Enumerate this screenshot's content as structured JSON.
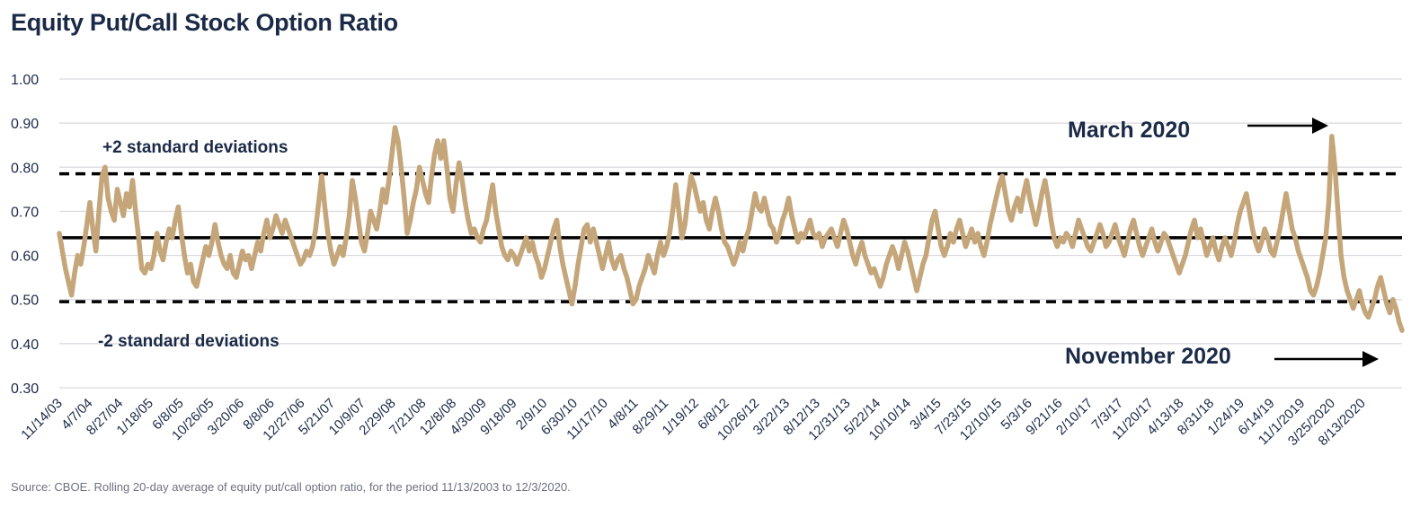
{
  "title": "Equity Put/Call Stock Option Ratio",
  "source": "Source: CBOE. Rolling 20-day average of equity put/call option ratio, for the period 11/13/2003 to 12/3/2020.",
  "colors": {
    "series": "#c4a67a",
    "text": "#1b2a47",
    "grid": "#d9d9de",
    "lines": "#000000"
  },
  "chart_data": {
    "type": "line",
    "title": "Equity Put/Call Stock Option Ratio",
    "ylim": [
      0.3,
      1.0
    ],
    "yticks": [
      "0.30",
      "0.40",
      "0.50",
      "0.60",
      "0.70",
      "0.80",
      "0.90",
      "1.00"
    ],
    "grid": true,
    "x_tick_labels": [
      "11/14/03",
      "4/7/04",
      "8/27/04",
      "1/18/05",
      "6/8/05",
      "10/26/05",
      "3/20/06",
      "8/8/06",
      "12/27/06",
      "5/21/07",
      "10/9/07",
      "2/29/08",
      "7/21/08",
      "12/8/08",
      "4/30/09",
      "9/18/09",
      "2/9/10",
      "6/30/10",
      "11/17/10",
      "4/8/11",
      "8/29/11",
      "1/19/12",
      "6/8/12",
      "10/26/12",
      "3/22/13",
      "8/12/13",
      "12/31/13",
      "5/22/14",
      "10/10/14",
      "3/4/15",
      "7/23/15",
      "12/10/15",
      "5/3/16",
      "9/21/16",
      "2/10/17",
      "7/3/17",
      "11/20/17",
      "4/13/18",
      "8/31/18",
      "1/24/19",
      "6/14/19",
      "11/1/2019",
      "3/25/2020",
      "8/13/2020"
    ],
    "reference_lines": [
      {
        "value": 0.64,
        "style": "solid"
      },
      {
        "value": 0.785,
        "style": "dashed"
      },
      {
        "value": 0.495,
        "style": "dashed"
      }
    ],
    "annotations": [
      {
        "text": "+2 standard deviations"
      },
      {
        "text": "-2 standard deviations"
      },
      {
        "text": "March 2020"
      },
      {
        "text": "November 2020"
      }
    ],
    "series": [
      {
        "values": [
          0.65,
          0.61,
          0.57,
          0.54,
          0.51,
          0.56,
          0.6,
          0.58,
          0.62,
          0.67,
          0.72,
          0.66,
          0.61,
          0.7,
          0.78,
          0.8,
          0.73,
          0.7,
          0.68,
          0.75,
          0.72,
          0.69,
          0.74,
          0.71,
          0.77,
          0.7,
          0.64,
          0.57,
          0.56,
          0.58,
          0.57,
          0.6,
          0.65,
          0.61,
          0.59,
          0.63,
          0.66,
          0.64,
          0.68,
          0.71,
          0.65,
          0.6,
          0.56,
          0.58,
          0.54,
          0.53,
          0.56,
          0.59,
          0.62,
          0.6,
          0.63,
          0.67,
          0.63,
          0.6,
          0.58,
          0.57,
          0.6,
          0.56,
          0.55,
          0.58,
          0.61,
          0.59,
          0.6,
          0.57,
          0.6,
          0.63,
          0.61,
          0.65,
          0.68,
          0.64,
          0.66,
          0.69,
          0.67,
          0.65,
          0.68,
          0.66,
          0.64,
          0.62,
          0.6,
          0.58,
          0.59,
          0.61,
          0.6,
          0.62,
          0.66,
          0.72,
          0.78,
          0.71,
          0.65,
          0.61,
          0.58,
          0.6,
          0.62,
          0.6,
          0.64,
          0.69,
          0.77,
          0.73,
          0.68,
          0.63,
          0.61,
          0.65,
          0.7,
          0.68,
          0.66,
          0.7,
          0.75,
          0.72,
          0.77,
          0.83,
          0.89,
          0.86,
          0.8,
          0.73,
          0.65,
          0.68,
          0.72,
          0.75,
          0.8,
          0.77,
          0.74,
          0.72,
          0.78,
          0.83,
          0.86,
          0.82,
          0.86,
          0.8,
          0.73,
          0.7,
          0.76,
          0.81,
          0.77,
          0.72,
          0.68,
          0.65,
          0.66,
          0.64,
          0.63,
          0.66,
          0.68,
          0.72,
          0.76,
          0.7,
          0.66,
          0.62,
          0.6,
          0.59,
          0.61,
          0.6,
          0.58,
          0.6,
          0.62,
          0.64,
          0.61,
          0.63,
          0.6,
          0.58,
          0.55,
          0.57,
          0.6,
          0.63,
          0.66,
          0.68,
          0.62,
          0.58,
          0.55,
          0.52,
          0.49,
          0.53,
          0.58,
          0.62,
          0.66,
          0.67,
          0.63,
          0.66,
          0.63,
          0.6,
          0.57,
          0.6,
          0.63,
          0.59,
          0.57,
          0.59,
          0.6,
          0.57,
          0.55,
          0.52,
          0.49,
          0.5,
          0.53,
          0.55,
          0.57,
          0.6,
          0.58,
          0.56,
          0.6,
          0.63,
          0.6,
          0.62,
          0.65,
          0.7,
          0.76,
          0.7,
          0.64,
          0.67,
          0.73,
          0.78,
          0.76,
          0.73,
          0.7,
          0.72,
          0.68,
          0.66,
          0.7,
          0.73,
          0.7,
          0.66,
          0.63,
          0.62,
          0.6,
          0.58,
          0.6,
          0.63,
          0.61,
          0.64,
          0.66,
          0.7,
          0.74,
          0.71,
          0.7,
          0.73,
          0.7,
          0.67,
          0.66,
          0.63,
          0.65,
          0.68,
          0.7,
          0.73,
          0.69,
          0.66,
          0.63,
          0.65,
          0.64,
          0.66,
          0.68,
          0.65,
          0.64,
          0.65,
          0.62,
          0.64,
          0.65,
          0.66,
          0.64,
          0.62,
          0.65,
          0.68,
          0.66,
          0.63,
          0.6,
          0.58,
          0.61,
          0.63,
          0.6,
          0.58,
          0.56,
          0.57,
          0.55,
          0.53,
          0.55,
          0.58,
          0.6,
          0.62,
          0.6,
          0.57,
          0.6,
          0.63,
          0.61,
          0.58,
          0.55,
          0.52,
          0.55,
          0.58,
          0.6,
          0.64,
          0.68,
          0.7,
          0.66,
          0.62,
          0.6,
          0.62,
          0.65,
          0.63,
          0.66,
          0.68,
          0.65,
          0.62,
          0.64,
          0.66,
          0.63,
          0.65,
          0.62,
          0.6,
          0.63,
          0.67,
          0.7,
          0.73,
          0.76,
          0.78,
          0.74,
          0.7,
          0.68,
          0.71,
          0.73,
          0.7,
          0.74,
          0.77,
          0.73,
          0.7,
          0.67,
          0.7,
          0.74,
          0.77,
          0.73,
          0.68,
          0.64,
          0.62,
          0.64,
          0.63,
          0.65,
          0.64,
          0.62,
          0.65,
          0.68,
          0.66,
          0.64,
          0.62,
          0.61,
          0.63,
          0.65,
          0.67,
          0.65,
          0.62,
          0.63,
          0.65,
          0.67,
          0.64,
          0.62,
          0.6,
          0.63,
          0.66,
          0.68,
          0.65,
          0.62,
          0.6,
          0.62,
          0.64,
          0.66,
          0.63,
          0.61,
          0.63,
          0.65,
          0.64,
          0.62,
          0.6,
          0.58,
          0.56,
          0.58,
          0.6,
          0.63,
          0.66,
          0.68,
          0.64,
          0.66,
          0.63,
          0.6,
          0.62,
          0.64,
          0.61,
          0.59,
          0.62,
          0.64,
          0.62,
          0.6,
          0.63,
          0.67,
          0.7,
          0.72,
          0.74,
          0.7,
          0.66,
          0.63,
          0.61,
          0.63,
          0.66,
          0.64,
          0.61,
          0.6,
          0.63,
          0.66,
          0.7,
          0.74,
          0.7,
          0.66,
          0.64,
          0.61,
          0.59,
          0.57,
          0.55,
          0.52,
          0.51,
          0.53,
          0.56,
          0.6,
          0.64,
          0.72,
          0.87,
          0.8,
          0.7,
          0.6,
          0.55,
          0.52,
          0.5,
          0.48,
          0.5,
          0.52,
          0.49,
          0.47,
          0.46,
          0.48,
          0.5,
          0.53,
          0.55,
          0.52,
          0.49,
          0.47,
          0.5,
          0.48,
          0.45,
          0.43
        ]
      }
    ]
  }
}
